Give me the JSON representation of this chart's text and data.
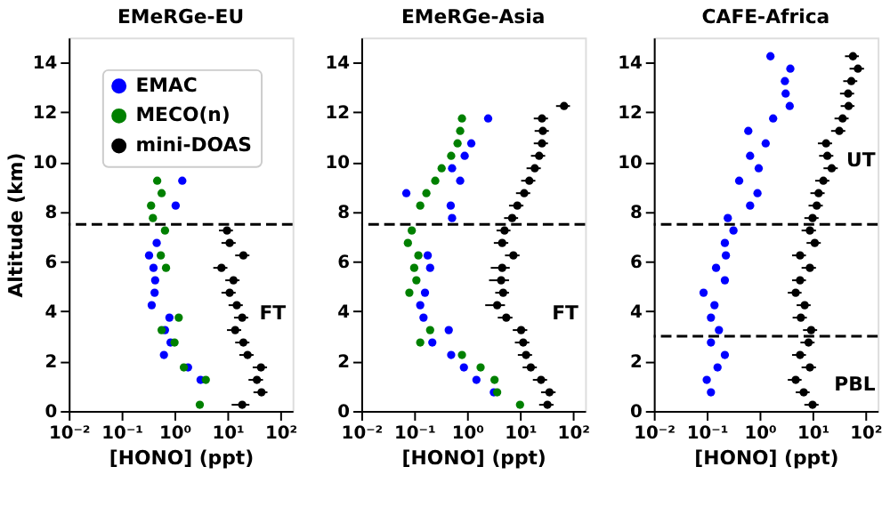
{
  "chart_data": [
    {
      "type": "scatter",
      "title": "EMeRGe-EU",
      "xlabel": "[HONO] (ppt)",
      "ylabel": "Altitude (km)",
      "legend": "top right",
      "marker": "circle",
      "grid": false,
      "xlim": [
        0.01,
        170
      ],
      "xticks": [
        {
          "value": 0.01,
          "label": "10⁻²"
        },
        {
          "value": 0.1,
          "label": "10⁻¹"
        },
        {
          "value": 1,
          "label": "10⁰"
        },
        {
          "value": 10,
          "label": "10¹"
        },
        {
          "value": 100,
          "label": "10²"
        }
      ],
      "log": "x",
      "ylim": [
        0,
        15
      ],
      "yticks": [
        0,
        2,
        4,
        6,
        8,
        10,
        12,
        14
      ],
      "ref_lines": [
        {
          "axis": "y",
          "value": 7.5,
          "color": "#000000",
          "line_style": "dashed"
        }
      ],
      "annotations": [
        "FT"
      ],
      "series": [
        {
          "name": "EMAC",
          "color": "#0000ff",
          "x": [
            1.4,
            1.05,
            0.46,
            0.33,
            0.4,
            0.43,
            0.42,
            0.37,
            0.8,
            0.66,
            0.84,
            0.63,
            1.8,
            3.1
          ],
          "values": [
            9.25,
            8.25,
            6.75,
            6.25,
            5.75,
            5.25,
            4.75,
            4.25,
            3.75,
            3.25,
            2.75,
            2.25,
            1.75,
            1.25
          ]
        },
        {
          "name": "MECO(n)",
          "color": "#008000",
          "x": [
            0.47,
            0.57,
            0.36,
            0.39,
            0.66,
            0.55,
            0.69,
            1.2,
            0.57,
            1.0,
            1.5,
            3.9,
            3.0
          ],
          "values": [
            9.25,
            8.75,
            8.25,
            7.75,
            7.25,
            6.25,
            5.75,
            3.75,
            3.25,
            2.75,
            1.75,
            1.25,
            0.25
          ]
        },
        {
          "name": "mini-DOAS",
          "color": "#000000",
          "x": [
            9.8,
            11,
            20,
            7.7,
            13,
            11,
            15,
            19,
            14,
            20,
            24,
            43,
            36,
            44,
            19
          ],
          "values": [
            7.25,
            6.75,
            6.25,
            5.75,
            5.25,
            4.75,
            4.25,
            3.75,
            3.25,
            2.75,
            2.25,
            1.75,
            1.25,
            0.75,
            0.25
          ],
          "xerrors": [
            2.9,
            3.3,
            6,
            2.3,
            3.9,
            3.3,
            4.5,
            5.7,
            4.2,
            6,
            7.2,
            13,
            11,
            13,
            7
          ]
        }
      ]
    },
    {
      "type": "scatter",
      "title": "EMeRGe-Asia",
      "xlabel": "[HONO] (ppt)",
      "marker": "circle",
      "grid": false,
      "xlim": [
        0.01,
        170
      ],
      "xticks": [
        {
          "value": 0.01,
          "label": "10⁻²"
        },
        {
          "value": 0.1,
          "label": "10⁻¹"
        },
        {
          "value": 1,
          "label": "10⁰"
        },
        {
          "value": 10,
          "label": "10¹"
        },
        {
          "value": 100,
          "label": "10²"
        }
      ],
      "log": "x",
      "ylim": [
        0,
        15
      ],
      "yticks": [
        0,
        2,
        4,
        6,
        8,
        10,
        12,
        14
      ],
      "ref_lines": [
        {
          "axis": "y",
          "value": 7.5,
          "color": "#000000",
          "line_style": "dashed"
        }
      ],
      "annotations": [
        "FT"
      ],
      "series": [
        {
          "color": "#0000ff",
          "x": [
            2.5,
            1.2,
            0.9,
            0.52,
            0.74,
            0.071,
            0.49,
            0.52,
            0.18,
            0.2,
            0.16,
            0.13,
            0.15,
            0.45,
            0.22,
            0.5,
            0.87,
            1.5,
            3.2
          ],
          "values": [
            11.75,
            10.75,
            10.25,
            9.75,
            9.25,
            8.75,
            8.25,
            7.75,
            6.25,
            5.75,
            4.75,
            4.25,
            3.75,
            3.25,
            2.75,
            2.25,
            1.75,
            1.25,
            0.75
          ]
        },
        {
          "color": "#008000",
          "x": [
            0.8,
            0.74,
            0.66,
            0.5,
            0.33,
            0.25,
            0.17,
            0.13,
            0.09,
            0.076,
            0.12,
            0.1,
            0.11,
            0.081,
            0.2,
            0.13,
            0.8,
            1.8,
            3.3,
            3.7,
            10
          ],
          "values": [
            11.75,
            11.25,
            10.75,
            10.25,
            9.75,
            9.25,
            8.75,
            8.25,
            7.25,
            6.75,
            6.25,
            5.75,
            5.25,
            4.75,
            3.25,
            2.75,
            2.25,
            1.75,
            1.25,
            0.75,
            0.25
          ]
        },
        {
          "color": "#000000",
          "x": [
            68,
            26,
            27,
            26,
            23,
            19,
            15,
            12,
            8.9,
            7.1,
            5.1,
            4.6,
            7.5,
            4.6,
            4.4,
            4.8,
            3.7,
            5.5,
            10.5,
            11.5,
            13,
            16,
            25,
            36,
            33
          ],
          "values": [
            12.25,
            11.75,
            11.25,
            10.75,
            10.25,
            9.75,
            9.25,
            8.75,
            8.25,
            7.75,
            7.25,
            6.75,
            6.25,
            5.75,
            5.25,
            4.75,
            4.25,
            3.75,
            3.25,
            2.75,
            2.25,
            1.75,
            1.25,
            0.75,
            0.25
          ],
          "xerrors": [
            20,
            7.8,
            8.1,
            7.8,
            6.9,
            5.7,
            4.5,
            3.6,
            2.7,
            2.1,
            1.5,
            1.4,
            2.3,
            1.8,
            1.8,
            1.4,
            1.5,
            1.7,
            3.2,
            3.5,
            3.9,
            4.8,
            7.5,
            11,
            10
          ]
        }
      ]
    },
    {
      "type": "scatter",
      "title": "CAFE-Africa",
      "xlabel": "[HONO] (ppt)",
      "marker": "circle",
      "grid": false,
      "xlim": [
        0.01,
        170
      ],
      "xticks": [
        {
          "value": 0.01,
          "label": "10⁻²"
        },
        {
          "value": 0.1,
          "label": "10⁻¹"
        },
        {
          "value": 1,
          "label": "10⁰"
        },
        {
          "value": 10,
          "label": "10¹"
        },
        {
          "value": 100,
          "label": "10²"
        }
      ],
      "log": "x",
      "ylim": [
        0,
        15
      ],
      "yticks": [
        0,
        2,
        4,
        6,
        8,
        10,
        12,
        14
      ],
      "ref_lines": [
        {
          "axis": "y",
          "value": 7.5,
          "color": "#000000",
          "line_style": "dashed"
        },
        {
          "axis": "y",
          "value": 3,
          "color": "#000000",
          "line_style": "dashed"
        }
      ],
      "annotations": [
        "UT",
        "PBL"
      ],
      "series": [
        {
          "color": "#0000ff",
          "x": [
            1.6,
            3.8,
            3.0,
            3.1,
            3.7,
            1.8,
            0.61,
            1.3,
            0.66,
            0.96,
            0.41,
            0.91,
            0.66,
            0.25,
            0.32,
            0.22,
            0.23,
            0.15,
            0.22,
            0.087,
            0.14,
            0.12,
            0.17,
            0.12,
            0.22,
            0.16,
            0.1,
            0.12
          ],
          "values": [
            14.25,
            13.75,
            13.25,
            12.75,
            12.25,
            11.75,
            11.25,
            10.75,
            10.25,
            9.75,
            9.25,
            8.75,
            8.25,
            7.75,
            7.25,
            6.75,
            6.25,
            5.75,
            5.25,
            4.75,
            4.25,
            3.75,
            3.25,
            2.75,
            2.25,
            1.75,
            1.25,
            0.75
          ]
        },
        {
          "color": "#000000",
          "x": [
            58,
            72,
            54,
            47,
            48,
            37,
            32,
            18,
            19,
            23,
            16,
            13,
            12,
            10,
            8.9,
            11,
            5.8,
            8.9,
            5.8,
            4.8,
            7.1,
            6.0,
            9.4,
            8.4,
            5.8,
            8.9,
            4.8,
            6.8,
            10
          ],
          "values": [
            14.25,
            13.75,
            13.25,
            12.75,
            12.25,
            11.75,
            11.25,
            10.75,
            10.25,
            9.75,
            9.25,
            8.75,
            8.25,
            7.75,
            7.25,
            6.75,
            6.25,
            5.75,
            5.25,
            4.75,
            4.25,
            3.75,
            3.25,
            2.75,
            2.25,
            1.75,
            1.25,
            0.75,
            0.25
          ],
          "xerrors": [
            17,
            22,
            16,
            14,
            14,
            11,
            9.6,
            5.4,
            5.7,
            6.9,
            4.8,
            3.9,
            3.6,
            3,
            2.7,
            3.3,
            1.7,
            2.7,
            1.7,
            1.4,
            2.1,
            1.8,
            2.8,
            2.5,
            1.7,
            2.7,
            1.4,
            2,
            3
          ]
        }
      ]
    }
  ]
}
